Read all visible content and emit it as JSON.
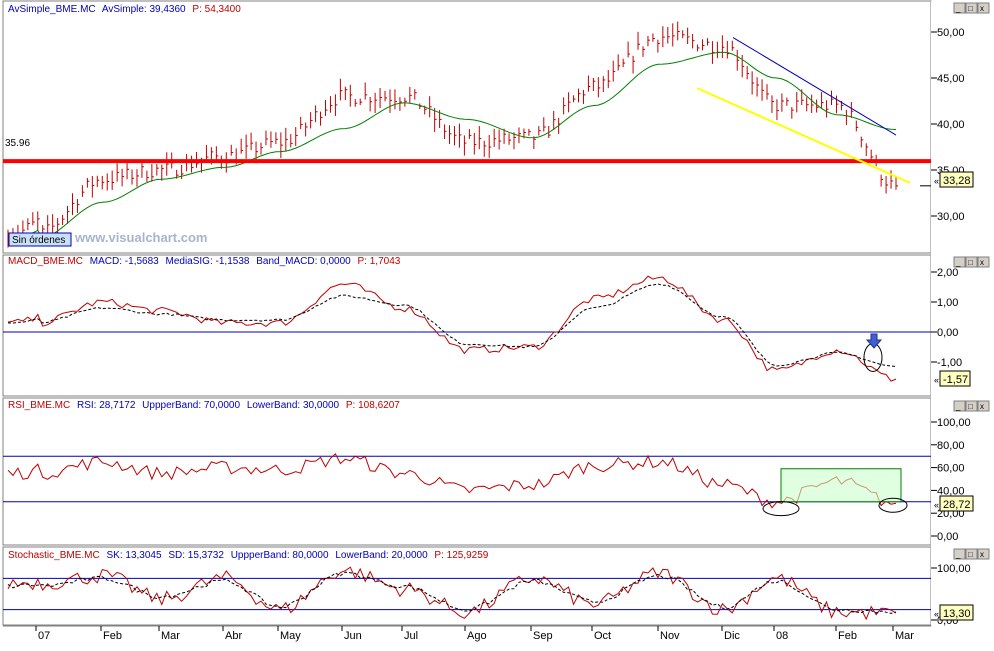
{
  "colors": {
    "price_bar": "#c00000",
    "sma": "#008000",
    "support": "#ff0000",
    "trend_upper": "#0000c0",
    "trend_lower": "#ffff00",
    "signal": "#000000",
    "band": "#0000c0",
    "highlight_fill": "#ccffcc",
    "highlight_border": "#008000",
    "value_box": "#ffffc0",
    "panel_label": "#0000c0",
    "panel_label_name": "#c00000"
  },
  "panels": {
    "price": {
      "name": "AvSimple_BME.MC",
      "label_parts": [
        "AvSimple_BME.MC",
        "AvSimple: 39,4360",
        "P: 54,3400"
      ],
      "support_label": "35.96",
      "current_value": "33,28",
      "order_badge": "Sin órdenes",
      "watermark": "www.visualchart.com",
      "y_ticks": [
        "50,00",
        "45,00",
        "40,00",
        "35,00",
        "30,00"
      ]
    },
    "macd": {
      "label_parts": [
        "MACD_BME.MC",
        "MACD: -1,5683",
        "MediaSIG: -1,1538",
        "Band_MACD: 0,0000",
        "P: 1,7043"
      ],
      "current_value": "-1,57",
      "y_ticks": [
        "2,00",
        "1,00",
        "0,00",
        "-1,00"
      ]
    },
    "rsi": {
      "label_parts": [
        "RSI_BME.MC",
        "RSI: 28,7172",
        "UppperBand: 70,0000",
        "LowerBand: 30,0000",
        "P: 108,6207"
      ],
      "current_value": "28,72",
      "y_ticks": [
        "100,00",
        "80,00",
        "60,00",
        "40,00",
        "20,00",
        "0,00"
      ]
    },
    "stochastic": {
      "label_parts": [
        "Stochastic_BME.MC",
        "SK: 13,3045",
        "SD: 15,3732",
        "UppperBand: 80,0000",
        "LowerBand: 20,0000",
        "P: 125,9259"
      ],
      "current_value": "13,30",
      "y_ticks": [
        "100,00",
        "0,00"
      ]
    }
  },
  "x_axis": {
    "labels": [
      "07",
      "Feb",
      "Mar",
      "Abr",
      "May",
      "Jun",
      "Jul",
      "Ago",
      "Sep",
      "Oct",
      "Nov",
      "Dic",
      "08",
      "Feb",
      "Mar"
    ]
  },
  "chart_data": [
    {
      "type": "line",
      "title": "AvSimple_BME.MC",
      "x": [
        "07",
        "Feb",
        "Mar",
        "Abr",
        "May",
        "Jun",
        "Jul",
        "Ago",
        "Sep",
        "Oct",
        "Nov",
        "Dic",
        "08",
        "Feb",
        "Mar"
      ],
      "ylim": [
        25,
        52
      ],
      "series": [
        {
          "name": "AvSimple",
          "values": [
            27.5,
            31.5,
            34.0,
            35.3,
            37.0,
            39.5,
            42.3,
            40.5,
            38.5,
            42.0,
            46.5,
            47.8,
            45.0,
            41.0,
            39.4
          ]
        }
      ],
      "price_close": [
        28.0,
        34.0,
        35.0,
        36.5,
        38.0,
        43.0,
        43.0,
        38.0,
        38.5,
        44.0,
        49.5,
        48.5,
        42.0,
        42.0,
        33.28
      ],
      "support": 35.96
    },
    {
      "type": "line",
      "title": "MACD_BME.MC",
      "ylim": [
        -1.8,
        2.1
      ],
      "series": [
        {
          "name": "MACD",
          "values": [
            0.3,
            1.0,
            0.7,
            0.3,
            0.3,
            1.6,
            0.8,
            -0.6,
            -0.5,
            1.1,
            1.8,
            0.4,
            -1.3,
            -0.6,
            -1.57
          ]
        },
        {
          "name": "MediaSIG",
          "values": [
            0.3,
            0.8,
            0.6,
            0.4,
            0.4,
            1.2,
            0.9,
            -0.4,
            -0.5,
            0.8,
            1.6,
            0.5,
            -1.1,
            -0.7,
            -1.15
          ]
        }
      ]
    },
    {
      "type": "line",
      "title": "RSI_BME.MC",
      "ylim": [
        0,
        100
      ],
      "series": [
        {
          "name": "RSI",
          "values": [
            55,
            65,
            55,
            60,
            58,
            68,
            55,
            40,
            45,
            62,
            65,
            45,
            30,
            48,
            28.7
          ]
        }
      ]
    },
    {
      "type": "line",
      "title": "Stochastic_BME.MC",
      "ylim": [
        0,
        100
      ],
      "series": [
        {
          "name": "SK",
          "values": [
            70,
            85,
            40,
            80,
            20,
            95,
            60,
            15,
            80,
            30,
            90,
            20,
            80,
            15,
            13.3
          ]
        },
        {
          "name": "SD",
          "values": [
            65,
            80,
            45,
            75,
            25,
            90,
            65,
            20,
            75,
            35,
            85,
            25,
            75,
            20,
            15.4
          ]
        }
      ]
    }
  ]
}
